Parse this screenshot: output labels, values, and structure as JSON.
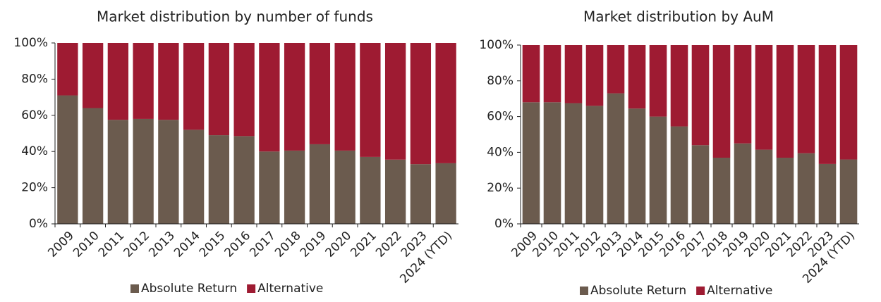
{
  "chart_data": [
    {
      "type": "stacked_bar",
      "title": "Market distribution by number of funds",
      "categories": [
        "2009",
        "2010",
        "2011",
        "2012",
        "2013",
        "2014",
        "2015",
        "2016",
        "2017",
        "2018",
        "2019",
        "2020",
        "2021",
        "2022",
        "2023",
        "2024 (YTD)"
      ],
      "series": [
        {
          "name": "Absolute Return",
          "color": "#6b5b4e",
          "values": [
            71,
            64,
            57.5,
            58,
            57.5,
            52,
            49,
            48.5,
            40,
            40.5,
            44,
            40.5,
            37,
            35.5,
            33,
            33.5
          ]
        },
        {
          "name": "Alternative",
          "color": "#9e1b32",
          "values": [
            29,
            36,
            42.5,
            42,
            42.5,
            48,
            51,
            51.5,
            60,
            59.5,
            56,
            59.5,
            63,
            64.5,
            67,
            66.5
          ]
        }
      ],
      "ylim": [
        0,
        100
      ],
      "yticks": [
        {
          "value": 0,
          "label": "0%"
        },
        {
          "value": 20,
          "label": "20%"
        },
        {
          "value": 40,
          "label": "40%"
        },
        {
          "value": 60,
          "label": "60%"
        },
        {
          "value": 80,
          "label": "80%"
        },
        {
          "value": 100,
          "label": "100%"
        }
      ],
      "legend": "bottom"
    },
    {
      "type": "stacked_bar",
      "title": "Market distribution by AuM",
      "categories": [
        "2009",
        "2010",
        "2011",
        "2012",
        "2013",
        "2014",
        "2015",
        "2016",
        "2017",
        "2018",
        "2019",
        "2020",
        "2021",
        "2022",
        "2023",
        "2024 (YTD)"
      ],
      "series": [
        {
          "name": "Absolute Return",
          "color": "#6b5b4e",
          "values": [
            68,
            68,
            67.5,
            66,
            73,
            64.5,
            60,
            54.5,
            44,
            37,
            45,
            41.5,
            37,
            39.5,
            33.5,
            36
          ]
        },
        {
          "name": "Alternative",
          "color": "#9e1b32",
          "values": [
            32,
            32,
            32.5,
            34,
            27,
            35.5,
            40,
            45.5,
            56,
            63,
            55,
            58.5,
            63,
            60.5,
            66.5,
            64
          ]
        }
      ],
      "ylim": [
        0,
        100
      ],
      "yticks": [
        {
          "value": 0,
          "label": "0%"
        },
        {
          "value": 20,
          "label": "20%"
        },
        {
          "value": 40,
          "label": "40%"
        },
        {
          "value": 60,
          "label": "60%"
        },
        {
          "value": 80,
          "label": "80%"
        },
        {
          "value": 100,
          "label": "100%"
        }
      ],
      "legend": "bottom"
    }
  ]
}
